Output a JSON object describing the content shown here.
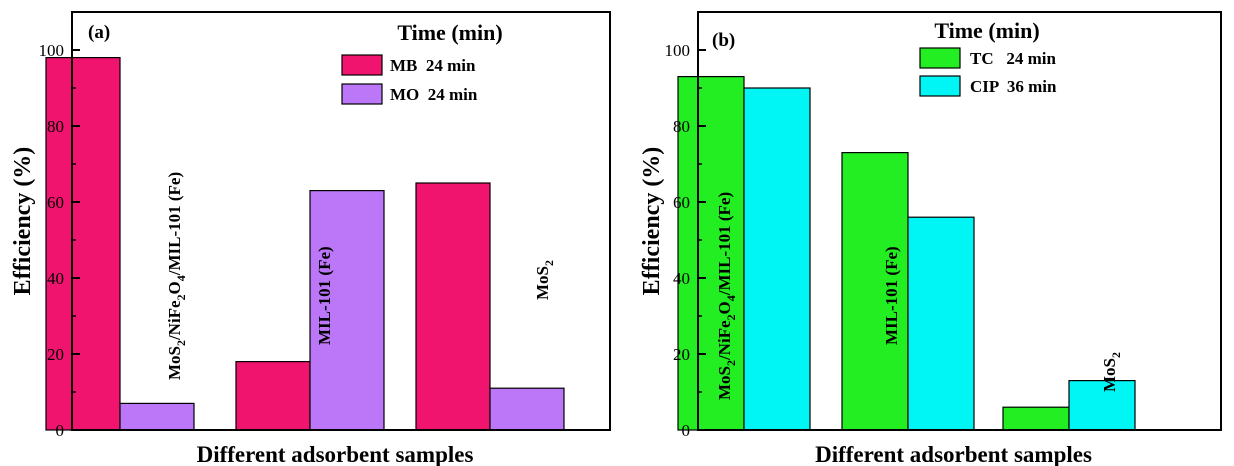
{
  "chart_data": [
    {
      "type": "bar",
      "panel_label": "(a)",
      "xlabel": "Different adsorbent samples",
      "ylabel": "Efficiency (%)",
      "ylim": [
        0,
        110
      ],
      "yticks": [
        0,
        20,
        40,
        60,
        80,
        100
      ],
      "grid": false,
      "legend_title": "Time (min)",
      "legend_position": "top-right",
      "categories": [
        "MoS2/NiFe2O4/MIL-101 (Fe)",
        "MIL-101 (Fe)",
        "MoS2"
      ],
      "series": [
        {
          "name": "MB  24 min",
          "color": "#F0146E",
          "values": [
            98,
            18,
            65
          ]
        },
        {
          "name": "MO  24 min",
          "color": "#BB77F7",
          "values": [
            7,
            63,
            11
          ]
        }
      ]
    },
    {
      "type": "bar",
      "panel_label": "(b)",
      "xlabel": "Different adsorbent samples",
      "ylabel": "Efficiency (%)",
      "ylim": [
        0,
        110
      ],
      "yticks": [
        0,
        20,
        40,
        60,
        80,
        100
      ],
      "grid": false,
      "legend_title": "Time (min)",
      "legend_position": "top-left",
      "categories": [
        "MoS2/NiFe2O4/MIL-101 (Fe)",
        "MIL-101 (Fe)",
        "MoS2"
      ],
      "series": [
        {
          "name": "TC   24 min",
          "color": "#22EE22",
          "values": [
            93,
            73,
            6
          ]
        },
        {
          "name": "CIP  36 min",
          "color": "#00F5F5",
          "values": [
            90,
            56,
            13
          ]
        }
      ]
    }
  ]
}
